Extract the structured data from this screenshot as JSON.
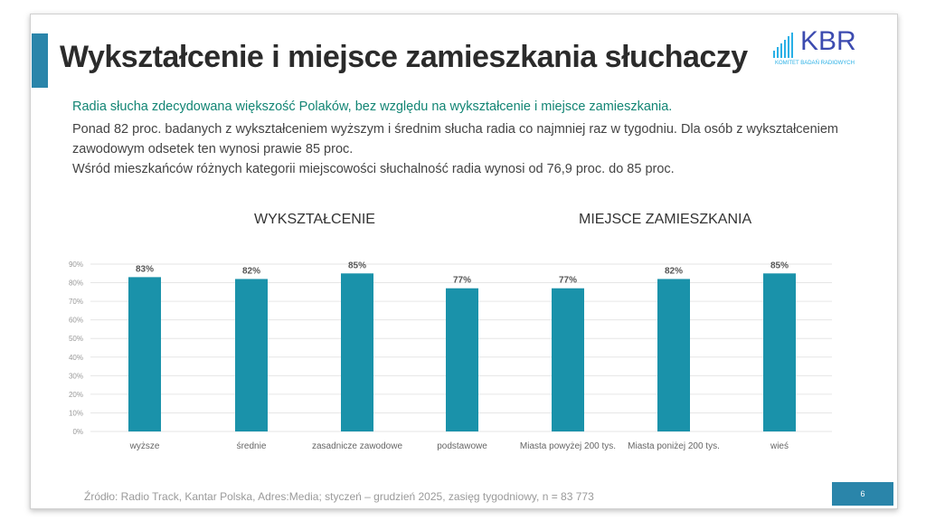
{
  "title": "Wykształcenie i miejsce zamieszkania słuchaczy",
  "logo": {
    "text": "KBR",
    "subtitle": "KOMITET BADAŃ RADIOWYCH"
  },
  "lead": "Radia słucha zdecydowana większość Polaków, bez względu na wykształcenie i miejsce zamieszkania.",
  "body": [
    "Ponad 82 proc. badanych z wykształceniem wyższym i średnim słucha radia co najmniej raz w tygodniu. Dla osób z wykształceniem zawodowym odsetek ten wynosi prawie 85 proc.",
    "Wśród mieszkańców różnych kategorii miejscowości słuchalność radia wynosi od 76,9 proc. do 85 proc."
  ],
  "chart_data": {
    "type": "bar",
    "group_titles": [
      "WYKSZTAŁCENIE",
      "MIEJSCE ZAMIESZKANIA"
    ],
    "categories": [
      "wyższe",
      "średnie",
      "zasadnicze zawodowe",
      "podstawowe",
      "Miasta powyżej 200 tys.",
      "Miasta poniżej 200 tys.",
      "wieś"
    ],
    "values": [
      83,
      82,
      85,
      77,
      77,
      82,
      85
    ],
    "data_labels": [
      "83%",
      "82%",
      "85%",
      "77%",
      "77%",
      "82%",
      "85%"
    ],
    "yticks": [
      "0%",
      "10%",
      "20%",
      "30%",
      "40%",
      "50%",
      "60%",
      "70%",
      "80%",
      "90%"
    ],
    "ylim": [
      0,
      90
    ],
    "grid": true,
    "bar_color": "#1a92aa"
  },
  "source": "Źródło: Radio Track, Kantar Polska, Adres:Media; styczeń – grudzień 2025, zasięg tygodniowy, n = 83 773",
  "page_number": "6"
}
